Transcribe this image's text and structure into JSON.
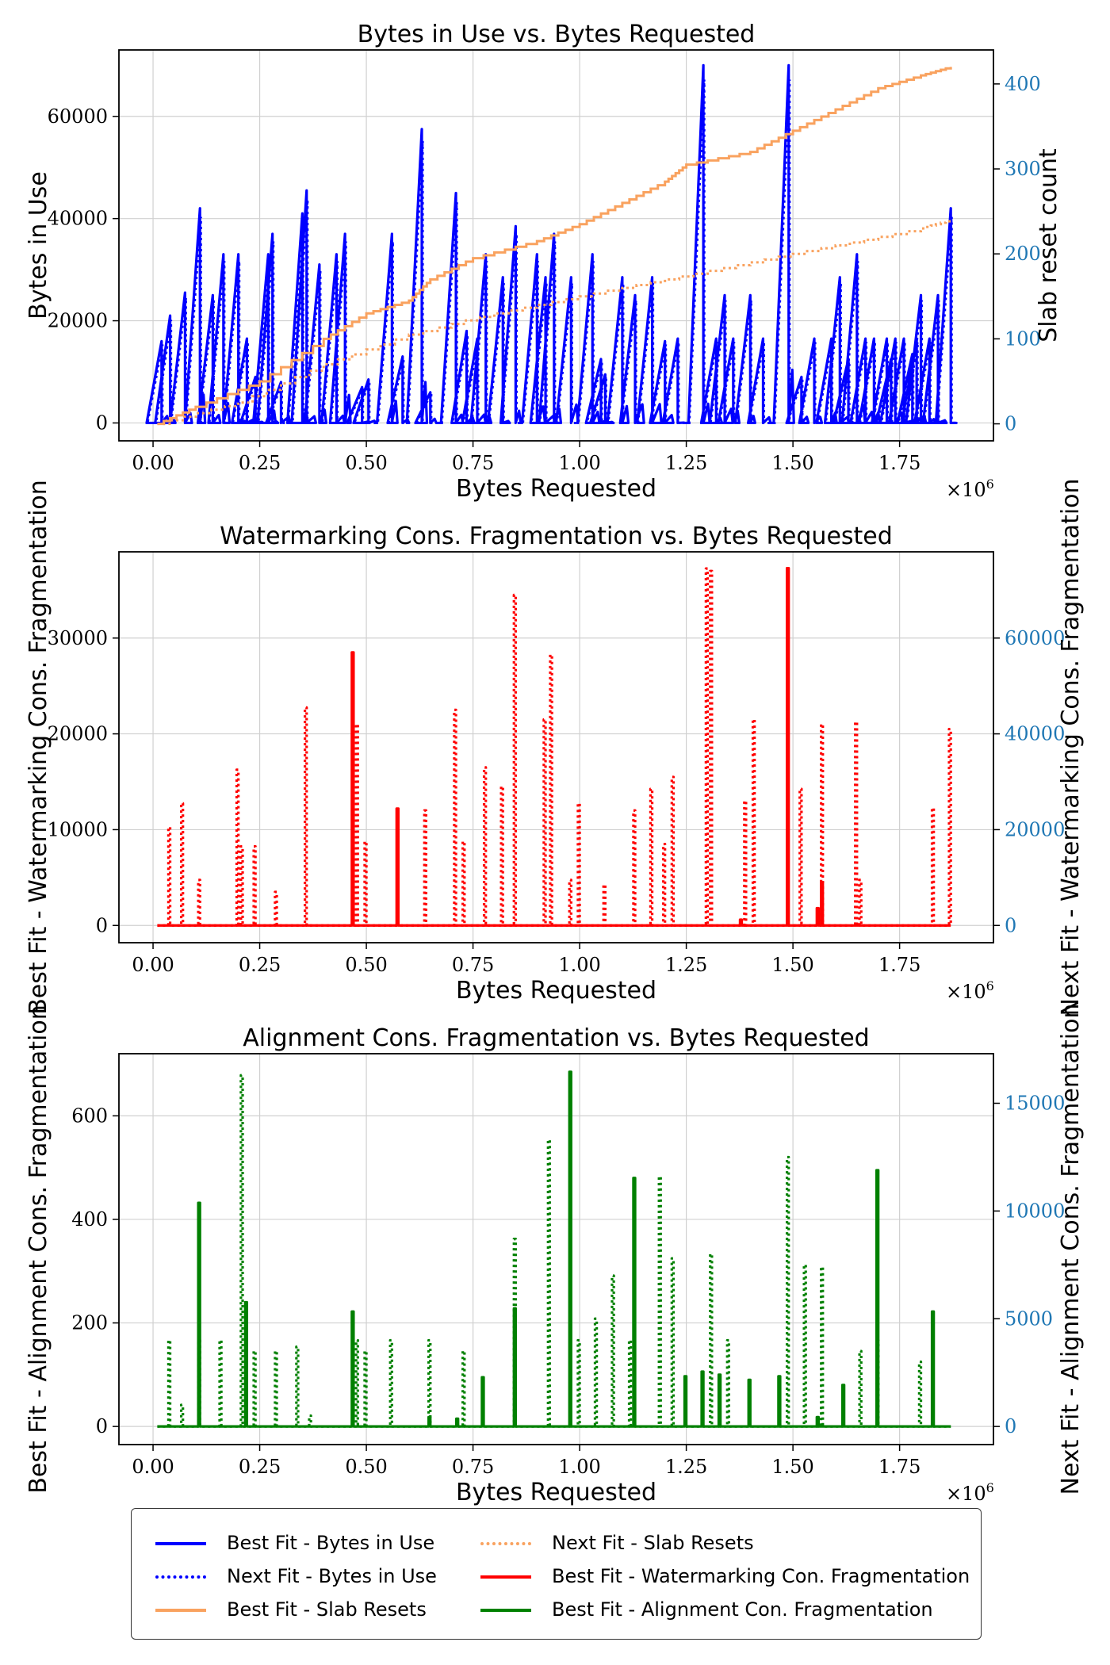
{
  "chart_data": [
    {
      "type": "line",
      "title": "Bytes in Use vs. Bytes Requested",
      "xlabel": "Bytes Requested",
      "x_scale_label": "×10",
      "x_scale_exp": "6",
      "ylabel": "Bytes in Use",
      "y2label": "Slab reset count",
      "xlim": [
        -0.08,
        1.97
      ],
      "ylim": [
        -3500,
        73000
      ],
      "y2lim": [
        -20,
        440
      ],
      "xticks": [
        0.0,
        0.25,
        0.5,
        0.75,
        1.0,
        1.25,
        1.5,
        1.75
      ],
      "xtick_labels": [
        "0.00",
        "0.25",
        "0.50",
        "0.75",
        "1.00",
        "1.25",
        "1.50",
        "1.75"
      ],
      "yticks": [
        0,
        20000,
        40000,
        60000
      ],
      "ytick_labels": [
        "0",
        "20000",
        "40000",
        "60000"
      ],
      "y2ticks": [
        0,
        100,
        200,
        300,
        400
      ],
      "y2tick_labels": [
        "0",
        "100",
        "200",
        "300",
        "400"
      ],
      "grid": true,
      "series": [
        {
          "name": "Best Fit - Bytes in Use",
          "axis": "left",
          "style": "solid",
          "color": "#0000ff",
          "peaks": [
            [
              0.02,
              16000
            ],
            [
              0.04,
              21000
            ],
            [
              0.075,
              25500
            ],
            [
              0.11,
              42000
            ],
            [
              0.14,
              25000
            ],
            [
              0.165,
              33000
            ],
            [
              0.2,
              33000
            ],
            [
              0.22,
              16500
            ],
            [
              0.24,
              9000
            ],
            [
              0.27,
              33000
            ],
            [
              0.28,
              37000
            ],
            [
              0.3,
              8000
            ],
            [
              0.35,
              41000
            ],
            [
              0.36,
              45500
            ],
            [
              0.39,
              31000
            ],
            [
              0.43,
              33000
            ],
            [
              0.45,
              37000
            ],
            [
              0.49,
              7000
            ],
            [
              0.505,
              8500
            ],
            [
              0.56,
              37000
            ],
            [
              0.585,
              13000
            ],
            [
              0.63,
              57500
            ],
            [
              0.65,
              6000
            ],
            [
              0.71,
              45000
            ],
            [
              0.735,
              18000
            ],
            [
              0.76,
              16500
            ],
            [
              0.78,
              33000
            ],
            [
              0.82,
              28500
            ],
            [
              0.85,
              38500
            ],
            [
              0.9,
              33000
            ],
            [
              0.92,
              28500
            ],
            [
              0.94,
              37000
            ],
            [
              0.98,
              28500
            ],
            [
              1.03,
              33000
            ],
            [
              1.05,
              12500
            ],
            [
              1.06,
              9500
            ],
            [
              1.1,
              28500
            ],
            [
              1.13,
              25000
            ],
            [
              1.17,
              28500
            ],
            [
              1.2,
              16000
            ],
            [
              1.23,
              16500
            ],
            [
              1.29,
              70000
            ],
            [
              1.32,
              16500
            ],
            [
              1.34,
              25000
            ],
            [
              1.36,
              16500
            ],
            [
              1.4,
              25000
            ],
            [
              1.43,
              16500
            ],
            [
              1.49,
              70000
            ],
            [
              1.52,
              9000
            ],
            [
              1.55,
              16500
            ],
            [
              1.59,
              16500
            ],
            [
              1.61,
              28500
            ],
            [
              1.63,
              12500
            ],
            [
              1.65,
              33000
            ],
            [
              1.67,
              16500
            ],
            [
              1.69,
              16500
            ],
            [
              1.72,
              16500
            ],
            [
              1.73,
              12500
            ],
            [
              1.74,
              16500
            ],
            [
              1.76,
              16500
            ],
            [
              1.78,
              13500
            ],
            [
              1.79,
              16500
            ],
            [
              1.8,
              25000
            ],
            [
              1.82,
              16500
            ],
            [
              1.84,
              25000
            ],
            [
              1.87,
              42000
            ]
          ]
        },
        {
          "name": "Next Fit - Bytes in Use",
          "axis": "left",
          "style": "dotted",
          "color": "#0000ff"
        },
        {
          "name": "Best Fit - Slab Resets",
          "axis": "right",
          "style": "solid",
          "color": "#f9a25f",
          "x": [
            0.01,
            0.1,
            0.25,
            0.4,
            0.5,
            0.6,
            0.65,
            0.75,
            0.9,
            1.0,
            1.1,
            1.2,
            1.25,
            1.4,
            1.5,
            1.6,
            1.7,
            1.8,
            1.87
          ],
          "values": [
            0,
            20,
            50,
            100,
            130,
            145,
            170,
            195,
            215,
            235,
            260,
            285,
            305,
            320,
            345,
            370,
            395,
            410,
            420
          ]
        },
        {
          "name": "Next Fit - Slab Resets",
          "axis": "right",
          "style": "dotted",
          "color": "#f9a25f",
          "x": [
            0.01,
            0.2,
            0.4,
            0.6,
            0.8,
            1.0,
            1.2,
            1.4,
            1.6,
            1.8,
            1.87
          ],
          "values": [
            0,
            25,
            70,
            105,
            130,
            150,
            170,
            190,
            210,
            230,
            240
          ]
        }
      ]
    },
    {
      "type": "line",
      "title": "Watermarking Cons. Fragmentation vs. Bytes Requested",
      "xlabel": "Bytes Requested",
      "x_scale_label": "×10",
      "x_scale_exp": "6",
      "ylabel": "Best Fit - Watermarking Cons. Fragmentation",
      "y2label": "Next Fit - Watermarking Cons. Fragmentation",
      "xlim": [
        -0.08,
        1.97
      ],
      "ylim": [
        -1800,
        39000
      ],
      "y2lim": [
        -3600,
        78000
      ],
      "xticks": [
        0.0,
        0.25,
        0.5,
        0.75,
        1.0,
        1.25,
        1.5,
        1.75
      ],
      "xtick_labels": [
        "0.00",
        "0.25",
        "0.50",
        "0.75",
        "1.00",
        "1.25",
        "1.50",
        "1.75"
      ],
      "yticks": [
        0,
        10000,
        20000,
        30000
      ],
      "ytick_labels": [
        "0",
        "10000",
        "20000",
        "30000"
      ],
      "y2ticks": [
        0,
        20000,
        40000,
        60000
      ],
      "y2tick_labels": [
        "0",
        "20000",
        "40000",
        "60000"
      ],
      "grid": true,
      "series": [
        {
          "name": "Best Fit - Watermarking Con. Fragmentation",
          "axis": "left",
          "style": "solid",
          "color": "#ff0000",
          "peaks": [
            [
              0.47,
              28500
            ],
            [
              0.575,
              12200
            ],
            [
              1.38,
              600
            ],
            [
              1.49,
              37300
            ],
            [
              1.57,
              4500
            ],
            [
              1.56,
              1800
            ]
          ]
        },
        {
          "name": "Next Fit - Watermarking Con. Fragmentation",
          "axis": "right",
          "style": "dotted",
          "color": "#ff0000",
          "peaks": [
            [
              0.04,
              20500
            ],
            [
              0.07,
              25500
            ],
            [
              0.11,
              9500
            ],
            [
              0.2,
              32500
            ],
            [
              0.21,
              16500
            ],
            [
              0.24,
              16500
            ],
            [
              0.29,
              7000
            ],
            [
              0.36,
              45500
            ],
            [
              0.48,
              42000
            ],
            [
              0.5,
              17500
            ],
            [
              0.64,
              24000
            ],
            [
              0.71,
              45000
            ],
            [
              0.73,
              17500
            ],
            [
              0.78,
              33000
            ],
            [
              0.82,
              29000
            ],
            [
              0.85,
              69000
            ],
            [
              0.92,
              43000
            ],
            [
              0.935,
              56500
            ],
            [
              0.98,
              9500
            ],
            [
              1.0,
              25500
            ],
            [
              1.06,
              8500
            ],
            [
              1.13,
              24000
            ],
            [
              1.17,
              28500
            ],
            [
              1.2,
              17000
            ],
            [
              1.22,
              31000
            ],
            [
              1.3,
              74500
            ],
            [
              1.31,
              74000
            ],
            [
              1.39,
              26000
            ],
            [
              1.41,
              43000
            ],
            [
              1.52,
              28500
            ],
            [
              1.57,
              42000
            ],
            [
              1.65,
              42500
            ],
            [
              1.66,
              9500
            ],
            [
              1.83,
              24500
            ],
            [
              1.87,
              41000
            ]
          ]
        }
      ]
    },
    {
      "type": "line",
      "title": "Alignment Cons. Fragmentation vs. Bytes Requested",
      "xlabel": "Bytes Requested",
      "x_scale_label": "×10",
      "x_scale_exp": "6",
      "ylabel": "Best Fit - Alignment Cons. Fragmentation",
      "y2label": "Next Fit - Alignment Cons. Fragmentation",
      "xlim": [
        -0.08,
        1.97
      ],
      "ylim": [
        -35,
        720
      ],
      "y2lim": [
        -840,
        17300
      ],
      "xticks": [
        0.0,
        0.25,
        0.5,
        0.75,
        1.0,
        1.25,
        1.5,
        1.75
      ],
      "xtick_labels": [
        "0.00",
        "0.25",
        "0.50",
        "0.75",
        "1.00",
        "1.25",
        "1.50",
        "1.75"
      ],
      "yticks": [
        0,
        200,
        400,
        600
      ],
      "ytick_labels": [
        "0",
        "200",
        "400",
        "600"
      ],
      "y2ticks": [
        0,
        5000,
        10000,
        15000
      ],
      "y2tick_labels": [
        "0",
        "5000",
        "10000",
        "15000"
      ],
      "grid": true,
      "series": [
        {
          "name": "Best Fit - Alignment Con. Fragmentation",
          "axis": "left",
          "style": "solid",
          "color": "#008000",
          "peaks": [
            [
              0.11,
              432
            ],
            [
              0.22,
              240
            ],
            [
              0.47,
              222
            ],
            [
              0.65,
              18
            ],
            [
              0.715,
              15
            ],
            [
              0.775,
              95
            ],
            [
              0.85,
              228
            ],
            [
              0.98,
              685
            ],
            [
              1.13,
              480
            ],
            [
              1.25,
              97
            ],
            [
              1.29,
              106
            ],
            [
              1.33,
              100
            ],
            [
              1.4,
              90
            ],
            [
              1.47,
              97
            ],
            [
              1.56,
              18
            ],
            [
              1.62,
              80
            ],
            [
              1.7,
              495
            ],
            [
              1.83,
              222
            ]
          ]
        },
        {
          "name": "Next Fit - Alignment Con. Fragmentation",
          "axis": "right",
          "style": "dotted",
          "color": "#008000",
          "peaks": [
            [
              0.04,
              4000
            ],
            [
              0.07,
              1000
            ],
            [
              0.11,
              4000
            ],
            [
              0.16,
              4000
            ],
            [
              0.21,
              16300
            ],
            [
              0.24,
              3500
            ],
            [
              0.29,
              3500
            ],
            [
              0.34,
              3700
            ],
            [
              0.37,
              500
            ],
            [
              0.48,
              4000
            ],
            [
              0.5,
              3500
            ],
            [
              0.56,
              4000
            ],
            [
              0.65,
              4000
            ],
            [
              0.73,
              3500
            ],
            [
              0.85,
              8700
            ],
            [
              0.93,
              13300
            ],
            [
              1.0,
              4000
            ],
            [
              1.04,
              5000
            ],
            [
              1.08,
              7000
            ],
            [
              1.12,
              4000
            ],
            [
              1.19,
              11600
            ],
            [
              1.22,
              7800
            ],
            [
              1.31,
              8000
            ],
            [
              1.35,
              4000
            ],
            [
              1.49,
              12500
            ],
            [
              1.53,
              7500
            ],
            [
              1.57,
              7400
            ],
            [
              1.66,
              3500
            ],
            [
              1.7,
              4000
            ],
            [
              1.8,
              3000
            ]
          ]
        }
      ]
    }
  ],
  "legend": {
    "items": [
      {
        "label": "Best Fit - Bytes in Use",
        "color": "#0000ff",
        "style": "solid"
      },
      {
        "label": "Next Fit - Bytes in Use",
        "color": "#0000ff",
        "style": "dotted"
      },
      {
        "label": "Best Fit - Slab Resets",
        "color": "#f9a25f",
        "style": "solid"
      },
      {
        "label": "Next Fit - Slab Resets",
        "color": "#f9a25f",
        "style": "dotted"
      },
      {
        "label": "Best Fit - Watermarking Con. Fragmentation",
        "color": "#ff0000",
        "style": "solid"
      },
      {
        "label": "Best Fit - Alignment Con. Fragmentation",
        "color": "#008000",
        "style": "solid"
      }
    ]
  }
}
